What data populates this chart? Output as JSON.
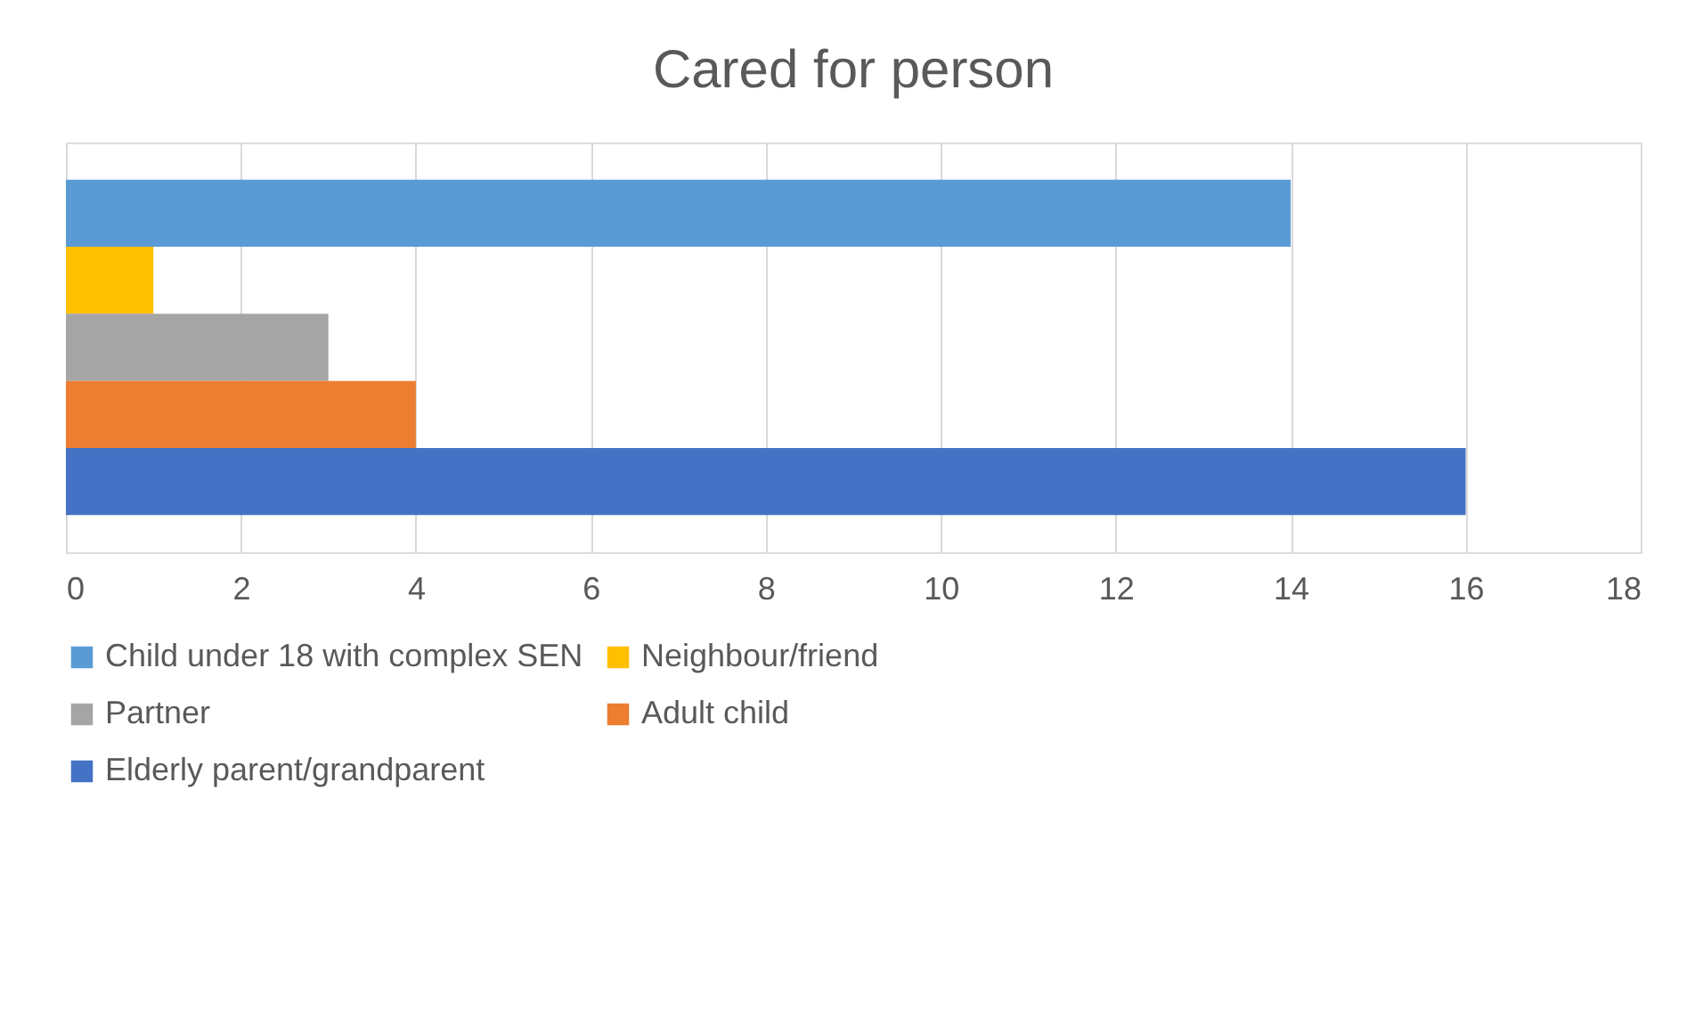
{
  "chart_data": {
    "type": "bar",
    "title": "Cared for person",
    "orientation": "horizontal",
    "categories": [
      null
    ],
    "series": [
      {
        "name": "Child under 18 with complex SEN",
        "color": "#5b9bd5",
        "values": [
          14
        ]
      },
      {
        "name": "Neighbour/friend",
        "color": "#ffc000",
        "values": [
          1
        ]
      },
      {
        "name": "Partner",
        "color": "#a5a5a5",
        "values": [
          3
        ]
      },
      {
        "name": "Adult child",
        "color": "#ed7d31",
        "values": [
          4
        ]
      },
      {
        "name": "Elderly parent/grandparent",
        "color": "#4472c4",
        "values": [
          16
        ]
      }
    ],
    "xlim": [
      0,
      18
    ],
    "xticks": [
      0,
      2,
      4,
      6,
      8,
      10,
      12,
      14,
      16,
      18
    ],
    "grid": "x",
    "legend": "bottom"
  }
}
